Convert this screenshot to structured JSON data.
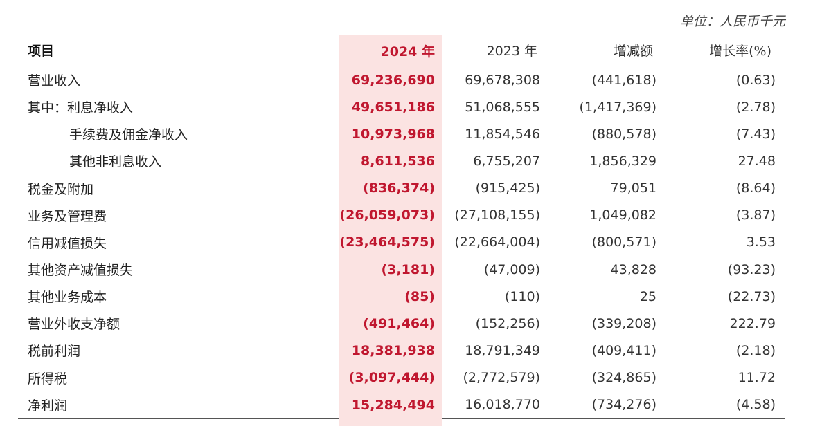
{
  "unit_label": "单位：人民币千元",
  "colors": {
    "highlight_bg": "#fbe3e2",
    "highlight_text": "#c0172f"
  },
  "headers": [
    "项目",
    "2024 年",
    "2023 年",
    "增减额",
    "增长率(%)"
  ],
  "rows": [
    {
      "label": "营业收入",
      "indent": false,
      "y2024": "69,236,690",
      "y2023": "69,678,308",
      "change": "(441,618)",
      "rate": "(0.63)"
    },
    {
      "label": "其中：利息净收入",
      "indent": false,
      "y2024": "49,651,186",
      "y2023": "51,068,555",
      "change": "(1,417,369)",
      "rate": "(2.78)"
    },
    {
      "label": "手续费及佣金净收入",
      "indent": true,
      "y2024": "10,973,968",
      "y2023": "11,854,546",
      "change": "(880,578)",
      "rate": "(7.43)"
    },
    {
      "label": "其他非利息收入",
      "indent": true,
      "y2024": "8,611,536",
      "y2023": "6,755,207",
      "change": "1,856,329",
      "rate": "27.48"
    },
    {
      "label": "税金及附加",
      "indent": false,
      "y2024": "(836,374)",
      "y2023": "(915,425)",
      "change": "79,051",
      "rate": "(8.64)"
    },
    {
      "label": "业务及管理费",
      "indent": false,
      "y2024": "(26,059,073)",
      "y2023": "(27,108,155)",
      "change": "1,049,082",
      "rate": "(3.87)"
    },
    {
      "label": "信用减值损失",
      "indent": false,
      "y2024": "(23,464,575)",
      "y2023": "(22,664,004)",
      "change": "(800,571)",
      "rate": "3.53"
    },
    {
      "label": "其他资产减值损失",
      "indent": false,
      "y2024": "(3,181)",
      "y2023": "(47,009)",
      "change": "43,828",
      "rate": "(93.23)"
    },
    {
      "label": "其他业务成本",
      "indent": false,
      "y2024": "(85)",
      "y2023": "(110)",
      "change": "25",
      "rate": "(22.73)"
    },
    {
      "label": "营业外收支净额",
      "indent": false,
      "y2024": "(491,464)",
      "y2023": "(152,256)",
      "change": "(339,208)",
      "rate": "222.79"
    },
    {
      "label": "税前利润",
      "indent": false,
      "y2024": "18,381,938",
      "y2023": "18,791,349",
      "change": "(409,411)",
      "rate": "(2.18)"
    },
    {
      "label": "所得税",
      "indent": false,
      "y2024": "(3,097,444)",
      "y2023": "(2,772,579)",
      "change": "(324,865)",
      "rate": "11.72"
    },
    {
      "label": "净利润",
      "indent": false,
      "y2024": "15,284,494",
      "y2023": "16,018,770",
      "change": "(734,276)",
      "rate": "(4.58)"
    }
  ]
}
